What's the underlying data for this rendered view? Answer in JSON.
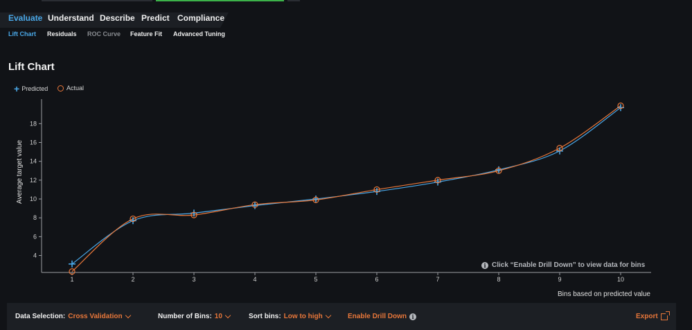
{
  "tabs": [
    {
      "label": "Evaluate",
      "active": true
    },
    {
      "label": "Understand",
      "active": false
    },
    {
      "label": "Describe",
      "active": false
    },
    {
      "label": "Predict",
      "active": false
    },
    {
      "label": "Compliance",
      "active": false
    }
  ],
  "subtabs": [
    {
      "label": "Lift Chart",
      "state": "active"
    },
    {
      "label": "Residuals",
      "state": "normal"
    },
    {
      "label": "ROC Curve",
      "state": "disabled"
    },
    {
      "label": "Feature Fit",
      "state": "normal"
    },
    {
      "label": "Advanced Tuning",
      "state": "normal"
    }
  ],
  "page_title": "Lift Chart",
  "drill_hint": "Click “Enable Drill Down” to view data for bins",
  "chart_data": {
    "type": "line",
    "title": "",
    "xlabel": "Bins based on predicted value",
    "ylabel": "Average target value",
    "x": [
      1,
      2,
      3,
      4,
      5,
      6,
      7,
      8,
      9,
      10
    ],
    "xlim": [
      0.5,
      10.5
    ],
    "ylim": [
      2.2,
      20.6
    ],
    "yticks": [
      4,
      6,
      8,
      10,
      12,
      14,
      16,
      18
    ],
    "legend_position": "top-left",
    "grid": false,
    "series": [
      {
        "name": "Predicted",
        "marker": "plus",
        "color": "#4aa8e8",
        "values": [
          3.1,
          7.7,
          8.5,
          9.3,
          10.0,
          10.8,
          11.8,
          13.1,
          15.1,
          19.7
        ]
      },
      {
        "name": "Actual",
        "marker": "circle",
        "color": "#e8773a",
        "values": [
          2.3,
          7.9,
          8.3,
          9.4,
          9.9,
          11.0,
          12.0,
          13.0,
          15.4,
          19.9
        ]
      }
    ]
  },
  "bottom_bar": {
    "data_selection_label": "Data Selection:",
    "data_selection_value": "Cross Validation",
    "bins_label": "Number of Bins:",
    "bins_value": "10",
    "sort_label": "Sort bins:",
    "sort_value": "Low to high",
    "drill_down_label": "Enable Drill Down",
    "export_label": "Export"
  }
}
